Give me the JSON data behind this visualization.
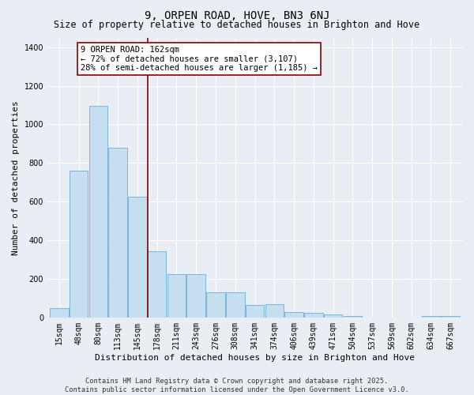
{
  "title": "9, ORPEN ROAD, HOVE, BN3 6NJ",
  "subtitle": "Size of property relative to detached houses in Brighton and Hove",
  "xlabel": "Distribution of detached houses by size in Brighton and Hove",
  "ylabel": "Number of detached properties",
  "footer_line1": "Contains HM Land Registry data © Crown copyright and database right 2025.",
  "footer_line2": "Contains public sector information licensed under the Open Government Licence v3.0.",
  "categories": [
    "15sqm",
    "48sqm",
    "80sqm",
    "113sqm",
    "145sqm",
    "178sqm",
    "211sqm",
    "243sqm",
    "276sqm",
    "308sqm",
    "341sqm",
    "374sqm",
    "406sqm",
    "439sqm",
    "471sqm",
    "504sqm",
    "537sqm",
    "569sqm",
    "602sqm",
    "634sqm",
    "667sqm"
  ],
  "values": [
    50,
    760,
    1095,
    880,
    625,
    345,
    225,
    225,
    130,
    130,
    65,
    68,
    27,
    22,
    14,
    9,
    0,
    0,
    0,
    7,
    8
  ],
  "bar_color": "#c5dff0",
  "bar_edge_color": "#6aaed6",
  "vline_color": "#8b0000",
  "annotation_line1": "9 ORPEN ROAD: 162sqm",
  "annotation_line2": "← 72% of detached houses are smaller (3,107)",
  "annotation_line3": "28% of semi-detached houses are larger (1,185) →",
  "annotation_box_facecolor": "#ffffff",
  "annotation_box_edgecolor": "#8b0000",
  "ylim": [
    0,
    1450
  ],
  "yticks": [
    0,
    200,
    400,
    600,
    800,
    1000,
    1200,
    1400
  ],
  "background_color": "#e8eef4",
  "grid_color": "#ffffff",
  "title_fontsize": 10,
  "subtitle_fontsize": 8.5,
  "xlabel_fontsize": 8,
  "ylabel_fontsize": 8,
  "tick_fontsize": 7,
  "annotation_fontsize": 7.5,
  "footer_fontsize": 6.2
}
